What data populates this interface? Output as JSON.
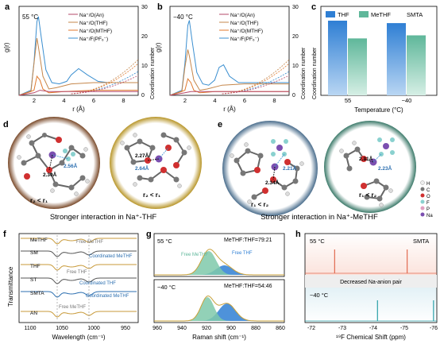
{
  "panels": {
    "a": {
      "letter": "a",
      "temp": "55 °C"
    },
    "b": {
      "letter": "b",
      "temp": "−40 °C"
    },
    "c": {
      "letter": "c"
    },
    "d": {
      "letter": "d"
    },
    "e": {
      "letter": "e"
    },
    "f": {
      "letter": "f"
    },
    "g": {
      "letter": "g"
    },
    "h": {
      "letter": "h"
    }
  },
  "rdf_legend": [
    "Na⁺/O(An)",
    "Na⁺/O(THF)",
    "Na⁺/O(MTHF)",
    "Na⁺/F(PF₆⁻)"
  ],
  "rdf_axes": {
    "xlabel": "r (Å)",
    "ylabel": "g(r)",
    "y2label": "Coordination number",
    "xticks": [
      "2",
      "4",
      "6",
      "8"
    ],
    "y2ticks": [
      "0",
      "10",
      "20",
      "30"
    ]
  },
  "colors": {
    "an": "#b5486a",
    "thf": "#c5874b",
    "mthf": "#e07a2e",
    "pf6": "#3b8fd0",
    "thf_bar": "#2f7fd4",
    "methf_bar": "#5fb79a",
    "purple": "#7b4fb0"
  },
  "panel_c": {
    "legend": [
      "THF",
      "MeTHF"
    ],
    "tag": "SMTA",
    "ylabel": "Coordination number",
    "xlabel": "Temperature (°C)",
    "categories": [
      "55",
      "−40"
    ]
  },
  "panel_d": {
    "labels": [
      "2.56Å",
      "2.30Å",
      "2.27Å",
      "2.64Å"
    ],
    "rel1": "r₂ < r₁",
    "rel2": "r₂ < r₁",
    "caption": "Stronger interaction in Na⁺-THF"
  },
  "panel_e": {
    "labels": [
      "2.21Å",
      "2.34Å",
      "2.31Å",
      "2.23Å"
    ],
    "rel1": "r₁ < r₂",
    "rel2": "r₁ < r₂",
    "caption": "Stronger interaction in Na⁺-MeTHF",
    "legend": [
      "H",
      "C",
      "O",
      "F",
      "P",
      "Na"
    ]
  },
  "panel_f": {
    "samples": [
      "MeTHF",
      "SM",
      "THF",
      "ST",
      "SMTA",
      "AN"
    ],
    "notes": [
      "Free MeTHF",
      "Coordinated MeTHF",
      "Free THF",
      "Coordinated THF",
      "Coordinated MeTHF",
      "Free MeTHF"
    ],
    "xlabel": "Wavelength (cm⁻¹)",
    "ylabel": "Transmittance",
    "xticks": [
      "1100",
      "1050",
      "1000",
      "950"
    ]
  },
  "panel_g": {
    "top_temp": "55 °C",
    "top_ratio": "MeTHF:THF=79:21",
    "free_methf": "Free MeTHF",
    "free_thf": "Free THF",
    "bottom_temp": "−40 °C",
    "bottom_ratio": "MeTHF:THF=54:46",
    "xlabel": "Raman shift (cm⁻¹)",
    "xticks": [
      "960",
      "940",
      "920",
      "900",
      "880",
      "860"
    ]
  },
  "panel_h": {
    "top_temp": "55 °C",
    "tag": "SMTA",
    "middle": "Decreased Na-anion pair",
    "bottom_temp": "−40 °C",
    "xlabel": "¹⁹F Chemical Shift (ppm)",
    "xticks": [
      "-72",
      "-73",
      "-74",
      "-75",
      "-76"
    ]
  },
  "chart_data": [
    {
      "type": "line",
      "panel": "a",
      "xlim": [
        1,
        9
      ],
      "ylim_right": [
        0,
        30
      ],
      "series": [
        {
          "name": "Na⁺/F(PF₆⁻)",
          "x": [
            1.0,
            1.8,
            2.0,
            2.2,
            2.3,
            2.5,
            2.8,
            3.2,
            3.7,
            4.2,
            4.5,
            5.0,
            5.6,
            6.3,
            7.0,
            8.0,
            9.0
          ],
          "y": [
            0.0,
            0.4,
            2.6,
            5.8,
            6.2,
            4.5,
            2.0,
            1.0,
            0.9,
            1.1,
            1.6,
            2.1,
            1.6,
            1.1,
            1.0,
            1.0,
            1.0
          ]
        },
        {
          "name": "Na⁺/O(THF)",
          "x": [
            1.0,
            1.8,
            2.0,
            2.2,
            2.3,
            2.6,
            3.0,
            3.5,
            4.5,
            6.0,
            9.0
          ],
          "y": [
            0.0,
            0.3,
            2.5,
            4.5,
            3.8,
            1.5,
            0.5,
            0.6,
            0.9,
            1.0,
            1.0
          ]
        },
        {
          "name": "Na⁺/O(MTHF)",
          "x": [
            1.0,
            2.0,
            2.2,
            2.4,
            2.6,
            3.0,
            4.0,
            6.0,
            9.0
          ],
          "y": [
            0.0,
            0.4,
            1.5,
            1.2,
            0.5,
            0.2,
            0.3,
            0.4,
            0.4
          ]
        },
        {
          "name": "Na⁺/O(An)",
          "x": [
            1.0,
            2.0,
            2.4,
            3.0,
            5.0,
            9.0
          ],
          "y": [
            0.0,
            0.2,
            0.4,
            0.3,
            0.3,
            0.3
          ]
        }
      ]
    },
    {
      "type": "line",
      "panel": "b",
      "xlim": [
        1,
        9
      ],
      "ylim_right": [
        0,
        30
      ],
      "series": [
        {
          "name": "Na⁺/F(PF₆⁻)",
          "x": [
            1.0,
            1.8,
            2.0,
            2.2,
            2.3,
            2.5,
            2.8,
            3.2,
            3.6,
            4.0,
            4.3,
            4.6,
            5.0,
            5.6,
            6.3,
            7.0,
            8.0,
            9.0
          ],
          "y": [
            0.0,
            0.4,
            2.5,
            5.5,
            5.9,
            4.2,
            1.8,
            0.9,
            0.8,
            1.2,
            2.2,
            2.4,
            1.5,
            1.0,
            1.0,
            1.0,
            1.0,
            1.0
          ]
        },
        {
          "name": "Na⁺/O(THF)",
          "x": [
            1.0,
            1.8,
            2.0,
            2.2,
            2.3,
            2.6,
            3.0,
            3.5,
            4.5,
            6.0,
            9.0
          ],
          "y": [
            0.0,
            0.3,
            2.2,
            3.6,
            3.1,
            1.2,
            0.4,
            0.5,
            0.8,
            0.9,
            0.9
          ]
        },
        {
          "name": "Na⁺/O(MTHF)",
          "x": [
            1.0,
            2.0,
            2.2,
            2.4,
            2.6,
            3.0,
            4.0,
            6.0,
            9.0
          ],
          "y": [
            0.0,
            0.4,
            1.3,
            1.0,
            0.4,
            0.2,
            0.3,
            0.3,
            0.3
          ]
        },
        {
          "name": "Na⁺/O(An)",
          "x": [
            1.0,
            2.0,
            2.4,
            3.0,
            5.0,
            9.0
          ],
          "y": [
            0.0,
            0.2,
            0.3,
            0.3,
            0.3,
            0.3
          ]
        }
      ]
    },
    {
      "type": "bar",
      "panel": "c",
      "categories": [
        "55",
        "−40"
      ],
      "ylabel": "Coordination number",
      "xlabel": "Temperature (°C)",
      "series": [
        {
          "name": "THF",
          "values": [
            1.22,
            1.18
          ]
        },
        {
          "name": "MeTHF",
          "values": [
            0.93,
            0.98
          ]
        }
      ],
      "ylim": [
        0,
        1.35
      ]
    },
    {
      "type": "line",
      "panel": "f",
      "xlabel": "Wavelength (cm⁻¹)",
      "xlim": [
        1120,
        940
      ],
      "series": [
        {
          "name": "MeTHF"
        },
        {
          "name": "SM"
        },
        {
          "name": "THF"
        },
        {
          "name": "ST"
        },
        {
          "name": "SMTA"
        },
        {
          "name": "AN"
        }
      ]
    },
    {
      "type": "area",
      "panel": "g",
      "xlabel": "Raman shift (cm⁻¹)",
      "xlim": [
        960,
        860
      ],
      "series": [
        {
          "name": "55 °C: MeTHF:THF=79:21"
        },
        {
          "name": "−40 °C: MeTHF:THF=54:46"
        }
      ]
    },
    {
      "type": "line",
      "panel": "h",
      "xlabel": "¹⁹F Chemical Shift (ppm)",
      "xlim": [
        -72,
        -76
      ],
      "series": [
        {
          "name": "55 °C",
          "peaks": [
            -72.9,
            -75.1
          ]
        },
        {
          "name": "−40 °C",
          "peaks": [
            -74.2,
            -75.9
          ]
        }
      ]
    }
  ]
}
